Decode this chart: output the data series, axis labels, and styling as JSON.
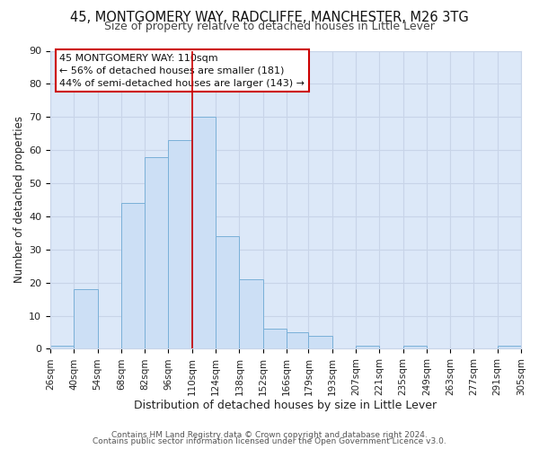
{
  "title1": "45, MONTGOMERY WAY, RADCLIFFE, MANCHESTER, M26 3TG",
  "title2": "Size of property relative to detached houses in Little Lever",
  "xlabel": "Distribution of detached houses by size in Little Lever",
  "ylabel": "Number of detached properties",
  "bar_left_edges": [
    26,
    40,
    54,
    68,
    82,
    96,
    110,
    124,
    138,
    152,
    166,
    179,
    193,
    207,
    221,
    235,
    249,
    263,
    277,
    291
  ],
  "bar_right_edges": [
    40,
    54,
    68,
    82,
    96,
    110,
    124,
    138,
    152,
    166,
    179,
    193,
    207,
    221,
    235,
    249,
    263,
    277,
    291,
    305
  ],
  "bar_heights": [
    1,
    18,
    0,
    44,
    58,
    63,
    70,
    34,
    21,
    6,
    5,
    4,
    0,
    1,
    0,
    1,
    0,
    0,
    0,
    1
  ],
  "bar_color": "#ccdff5",
  "bar_edge_color": "#7ab0d8",
  "vline_x": 110,
  "vline_color": "#cc0000",
  "ylim": [
    0,
    90
  ],
  "xlim": [
    26,
    305
  ],
  "yticks": [
    0,
    10,
    20,
    30,
    40,
    50,
    60,
    70,
    80,
    90
  ],
  "tick_labels": [
    "26sqm",
    "40sqm",
    "54sqm",
    "68sqm",
    "82sqm",
    "96sqm",
    "110sqm",
    "124sqm",
    "138sqm",
    "152sqm",
    "166sqm",
    "179sqm",
    "193sqm",
    "207sqm",
    "221sqm",
    "235sqm",
    "249sqm",
    "263sqm",
    "277sqm",
    "291sqm",
    "305sqm"
  ],
  "xtick_positions": [
    26,
    40,
    54,
    68,
    82,
    96,
    110,
    124,
    138,
    152,
    166,
    179,
    193,
    207,
    221,
    235,
    249,
    263,
    277,
    291,
    305
  ],
  "annotation_title": "45 MONTGOMERY WAY: 110sqm",
  "annotation_line1": "← 56% of detached houses are smaller (181)",
  "annotation_line2": "44% of semi-detached houses are larger (143) →",
  "annotation_box_color": "#ffffff",
  "annotation_box_edge": "#cc0000",
  "footer1": "Contains HM Land Registry data © Crown copyright and database right 2024.",
  "footer2": "Contains public sector information licensed under the Open Government Licence v3.0.",
  "grid_color": "#c8d4e8",
  "bg_color": "#dce8f8",
  "title1_fontsize": 10.5,
  "title2_fontsize": 9,
  "xlabel_fontsize": 9,
  "ylabel_fontsize": 8.5,
  "tick_fontsize": 7.5,
  "annotation_fontsize": 8,
  "footer_fontsize": 6.5
}
